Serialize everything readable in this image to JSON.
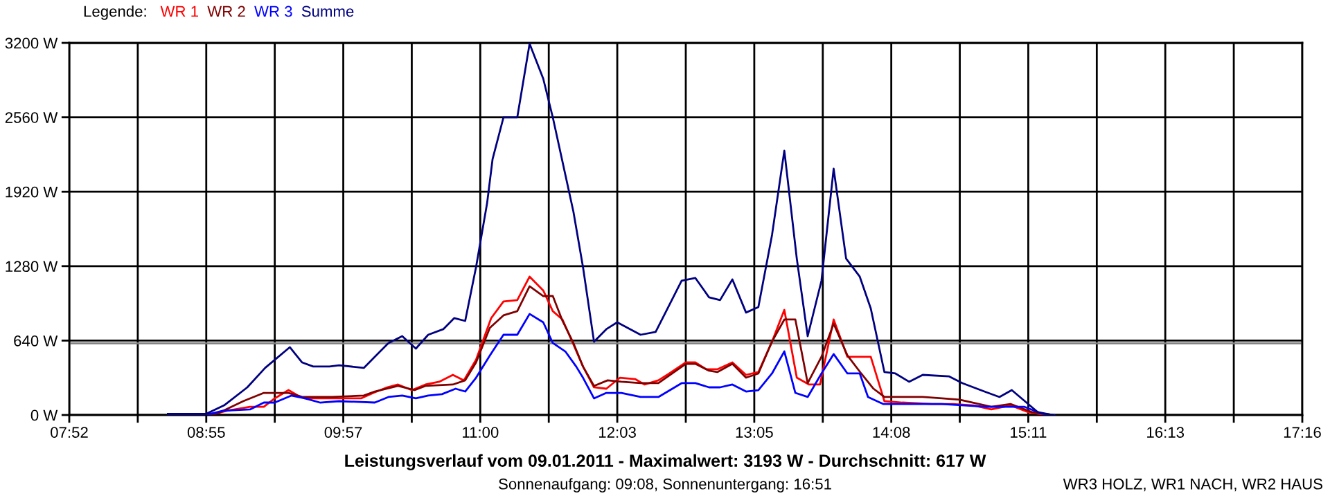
{
  "chart_data": {
    "type": "line",
    "title": "Leistungsverlauf vom 09.01.2011 - Maximalwert: 3193 W - Durchschnitt: 617 W",
    "subtitle": "Sonnenaufgang: 09:08, Sonnenuntergang: 16:51",
    "legend_title": "Legende:",
    "annotations": [
      "WR3 HOLZ, WR1 NACH, WR2 HAUS"
    ],
    "series": [
      {
        "name": "WR 1",
        "color": "#ff0000",
        "x": [
          8.619,
          8.984,
          9.068,
          9.245,
          9.35,
          9.433,
          9.538,
          9.611,
          9.663,
          9.872,
          10.091,
          10.185,
          10.29,
          10.373,
          10.478,
          10.582,
          10.687,
          10.791,
          10.875,
          10.968,
          11.083,
          11.177,
          11.282,
          11.376,
          11.48,
          11.553,
          11.627,
          11.71,
          11.783,
          11.867,
          11.961,
          12.065,
          12.18,
          12.253,
          12.358,
          12.441,
          12.567,
          12.64,
          12.723,
          12.807,
          12.922,
          13.026,
          13.12,
          13.224,
          13.318,
          13.413,
          13.507,
          13.59,
          13.694,
          13.799,
          13.977,
          14.081,
          14.217,
          14.446,
          14.603,
          14.76,
          14.896,
          15.042,
          15.178,
          15.313
        ],
        "values": [
          0,
          12,
          36,
          71,
          71,
          143,
          214,
          167,
          143,
          143,
          143,
          190,
          238,
          262,
          214,
          262,
          286,
          345,
          298,
          476,
          833,
          976,
          988,
          1190,
          1071,
          893,
          821,
          607,
          417,
          238,
          226,
          321,
          309,
          262,
          298,
          357,
          452,
          452,
          393,
          393,
          452,
          345,
          369,
          631,
          904,
          321,
          262,
          262,
          821,
          500,
          500,
          119,
          107,
          95,
          95,
          83,
          48,
          83,
          24,
          0
        ]
      },
      {
        "name": "WR 2",
        "color": "#800000",
        "x": [
          8.619,
          8.995,
          9.193,
          9.35,
          9.538,
          9.642,
          9.872,
          10.112,
          10.196,
          10.373,
          10.499,
          10.582,
          10.791,
          10.885,
          10.968,
          11.073,
          11.177,
          11.282,
          11.376,
          11.48,
          11.553,
          11.627,
          11.71,
          11.783,
          11.867,
          11.971,
          12.076,
          12.222,
          12.358,
          12.567,
          12.64,
          12.744,
          12.807,
          12.922,
          13.026,
          13.12,
          13.224,
          13.318,
          13.402,
          13.496,
          13.601,
          13.694,
          13.799,
          13.904,
          13.998,
          14.081,
          14.217,
          14.373,
          14.519,
          14.655,
          14.896,
          15.042,
          15.209,
          15.355
        ],
        "values": [
          0,
          12,
          119,
          190,
          190,
          155,
          155,
          167,
          202,
          250,
          214,
          250,
          262,
          298,
          452,
          750,
          857,
          893,
          1107,
          1023,
          1023,
          809,
          619,
          417,
          250,
          298,
          286,
          274,
          274,
          440,
          440,
          381,
          369,
          440,
          321,
          357,
          631,
          821,
          821,
          274,
          500,
          785,
          512,
          357,
          226,
          155,
          155,
          155,
          143,
          131,
          71,
          95,
          24,
          0
        ]
      },
      {
        "name": "WR 3",
        "color": "#0000ff",
        "x": [
          8.619,
          8.943,
          9.037,
          9.245,
          9.35,
          9.433,
          9.559,
          9.663,
          9.778,
          9.924,
          10.196,
          10.3,
          10.405,
          10.509,
          10.603,
          10.708,
          10.812,
          10.885,
          10.968,
          11.073,
          11.177,
          11.282,
          11.376,
          11.48,
          11.553,
          11.648,
          11.731,
          11.783,
          11.867,
          11.961,
          12.076,
          12.222,
          12.358,
          12.535,
          12.64,
          12.744,
          12.828,
          12.922,
          13.026,
          13.12,
          13.224,
          13.318,
          13.402,
          13.496,
          13.601,
          13.694,
          13.799,
          13.893,
          13.956,
          14.071,
          14.238,
          14.519,
          14.864,
          15.146,
          15.282,
          15.376
        ],
        "values": [
          10,
          10,
          36,
          48,
          107,
          107,
          167,
          143,
          107,
          119,
          107,
          155,
          167,
          143,
          167,
          179,
          226,
          202,
          321,
          512,
          690,
          690,
          869,
          797,
          619,
          547,
          417,
          321,
          143,
          190,
          190,
          155,
          155,
          274,
          274,
          238,
          238,
          262,
          202,
          214,
          357,
          547,
          190,
          155,
          357,
          524,
          357,
          357,
          155,
          95,
          95,
          95,
          71,
          71,
          12,
          0
        ]
      },
      {
        "name": "Summe",
        "color": "#000080",
        "x": [
          8.619,
          8.911,
          9.047,
          9.224,
          9.36,
          9.548,
          9.642,
          9.726,
          9.851,
          9.924,
          10.112,
          10.3,
          10.405,
          10.509,
          10.603,
          10.718,
          10.801,
          10.885,
          10.968,
          11.052,
          11.094,
          11.177,
          11.282,
          11.376,
          11.48,
          11.553,
          11.71,
          11.783,
          11.867,
          11.961,
          12.044,
          12.222,
          12.337,
          12.535,
          12.64,
          12.744,
          12.828,
          12.922,
          13.026,
          13.12,
          13.224,
          13.318,
          13.413,
          13.496,
          13.601,
          13.694,
          13.789,
          13.893,
          13.977,
          14.081,
          14.165,
          14.269,
          14.373,
          14.572,
          14.676,
          14.843,
          14.958,
          15.052,
          15.251,
          15.366
        ],
        "values": [
          10,
          10,
          83,
          238,
          405,
          583,
          452,
          417,
          417,
          428,
          405,
          619,
          678,
          571,
          690,
          738,
          833,
          809,
          1273,
          1821,
          2202,
          2559,
          2559,
          3193,
          2892,
          2559,
          1749,
          1273,
          631,
          738,
          797,
          690,
          714,
          1154,
          1178,
          1012,
          988,
          1166,
          881,
          928,
          1547,
          2273,
          1345,
          678,
          1154,
          2118,
          1345,
          1190,
          916,
          369,
          357,
          286,
          345,
          333,
          274,
          202,
          155,
          214,
          24,
          0
        ]
      }
    ],
    "ref_lines": [
      {
        "axis": "y",
        "value": 617,
        "label": null,
        "color": "#808080"
      }
    ],
    "xlim": [
      7.8667,
      17.2667
    ],
    "xticks": [
      {
        "value": 7.8667,
        "label": "07:52"
      },
      {
        "value": 8.3889,
        "label": null
      },
      {
        "value": 8.9111,
        "label": "08:55"
      },
      {
        "value": 9.4333,
        "label": null
      },
      {
        "value": 9.9556,
        "label": "09:57"
      },
      {
        "value": 10.4778,
        "label": null
      },
      {
        "value": 11.0,
        "label": "11:00"
      },
      {
        "value": 11.5222,
        "label": null
      },
      {
        "value": 12.0444,
        "label": "12:03"
      },
      {
        "value": 12.5667,
        "label": null
      },
      {
        "value": 13.0889,
        "label": "13:05"
      },
      {
        "value": 13.6111,
        "label": null
      },
      {
        "value": 14.1333,
        "label": "14:08"
      },
      {
        "value": 14.6556,
        "label": null
      },
      {
        "value": 15.1778,
        "label": "15:11"
      },
      {
        "value": 15.7,
        "label": null
      },
      {
        "value": 16.2222,
        "label": "16:13"
      },
      {
        "value": 16.7444,
        "label": null
      },
      {
        "value": 17.2667,
        "label": "17:16"
      }
    ],
    "ylim": [
      0,
      3200
    ],
    "yticks": [
      {
        "value": 0,
        "label": "0 W"
      },
      {
        "value": 640,
        "label": "640 W"
      },
      {
        "value": 1280,
        "label": "1280 W"
      },
      {
        "value": 1920,
        "label": "1920 W"
      },
      {
        "value": 2560,
        "label": "2560 W"
      },
      {
        "value": 3200,
        "label": "3200 W"
      }
    ],
    "grid": true,
    "legend": "top left",
    "line_style": "solid"
  }
}
